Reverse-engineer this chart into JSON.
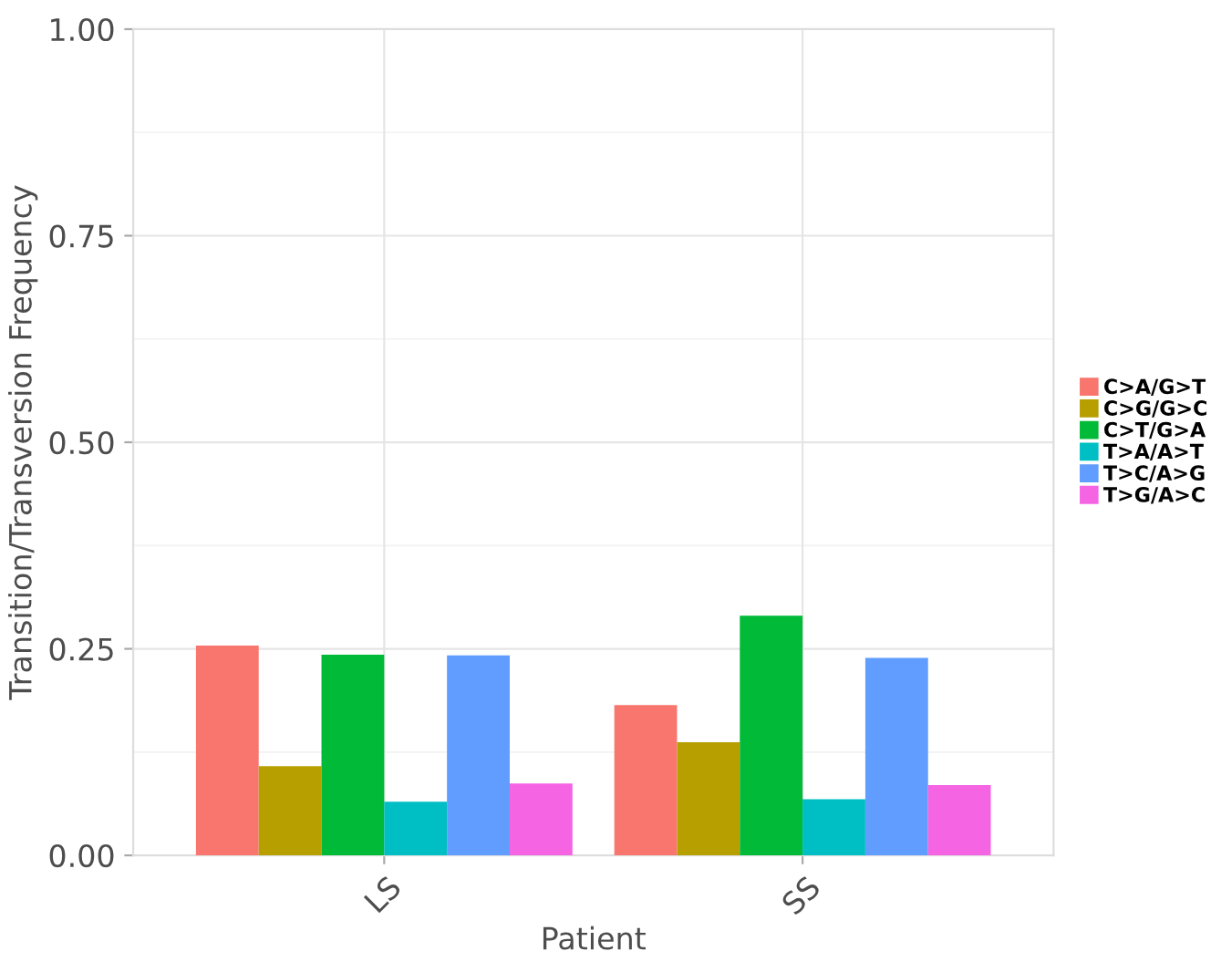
{
  "chart_data": {
    "type": "bar",
    "xlabel": "Patient",
    "ylabel": "Transition/Transversion Frequency",
    "categories": [
      "LS",
      "SS"
    ],
    "series": [
      {
        "name": "C>A/G>T",
        "color": "#f8766d",
        "values": [
          0.254,
          0.182
        ]
      },
      {
        "name": "C>G/G>C",
        "color": "#b79f00",
        "values": [
          0.108,
          0.137
        ]
      },
      {
        "name": "C>T/G>A",
        "color": "#00ba38",
        "values": [
          0.243,
          0.29
        ]
      },
      {
        "name": "T>A/A>T",
        "color": "#00bfc4",
        "values": [
          0.065,
          0.068
        ]
      },
      {
        "name": "T>C/A>G",
        "color": "#619cff",
        "values": [
          0.242,
          0.239
        ]
      },
      {
        "name": "T>G/A>C",
        "color": "#f564e3",
        "values": [
          0.087,
          0.085
        ]
      }
    ],
    "ylim": [
      0,
      1
    ],
    "yticks": [
      {
        "value": 0,
        "label": "0.00"
      },
      {
        "value": 0.25,
        "label": "0.25"
      },
      {
        "value": 0.5,
        "label": "0.50"
      },
      {
        "value": 0.75,
        "label": "0.75"
      },
      {
        "value": 1,
        "label": "1.00"
      }
    ],
    "grid": true,
    "legend": "right"
  }
}
